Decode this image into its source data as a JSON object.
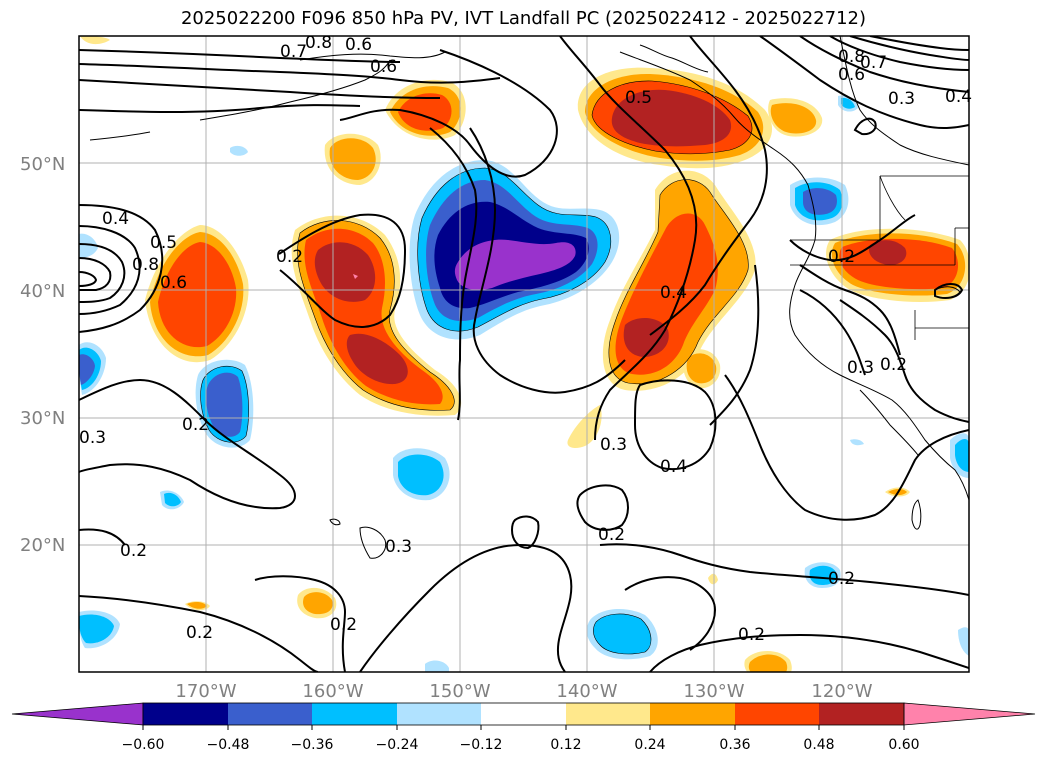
{
  "title": "2025022200 F096 850 hPa PV, IVT Landfall PC (2025022412 - 2025022712)",
  "map": {
    "lon_range": [
      -180,
      -110
    ],
    "lat_range": [
      10,
      60
    ],
    "lat_labels": [
      "50°N",
      "40°N",
      "30°N",
      "20°N"
    ],
    "lon_labels": [
      "170°W",
      "160°W",
      "150°W",
      "140°W",
      "130°W",
      "120°W"
    ]
  },
  "colorbar": {
    "ticks": [
      "−0.60",
      "−0.48",
      "−0.36",
      "−0.24",
      "−0.12",
      "0.12",
      "0.24",
      "0.36",
      "0.48",
      "0.60"
    ],
    "colors": [
      "#9932cc",
      "#00008b",
      "#3a5fcd",
      "#00bfff",
      "#b0e2ff",
      "#ffffff",
      "#ffe88c",
      "#ffa500",
      "#ff4500",
      "#b22222",
      "#ff82ab"
    ]
  },
  "contour_labels": [
    {
      "text": "0.7"
    },
    {
      "text": "0.6"
    },
    {
      "text": "0.8"
    },
    {
      "text": "0.6"
    },
    {
      "text": "0.5"
    },
    {
      "text": "0.8"
    },
    {
      "text": "0.7"
    },
    {
      "text": "0.6"
    },
    {
      "text": "0.3"
    },
    {
      "text": "0.4"
    },
    {
      "text": "0.4"
    },
    {
      "text": "0.5"
    },
    {
      "text": "0.8"
    },
    {
      "text": "0.6"
    },
    {
      "text": "0.2"
    },
    {
      "text": "0.2"
    },
    {
      "text": "0.4"
    },
    {
      "text": "0.3"
    },
    {
      "text": "0.2"
    },
    {
      "text": "0.2"
    },
    {
      "text": "0.3"
    },
    {
      "text": "0.4"
    },
    {
      "text": "0.3"
    },
    {
      "text": "0.2"
    },
    {
      "text": "0.3"
    },
    {
      "text": "0.2"
    },
    {
      "text": "0.2"
    },
    {
      "text": "0.2"
    },
    {
      "text": "0.2"
    },
    {
      "text": "0.2"
    }
  ]
}
